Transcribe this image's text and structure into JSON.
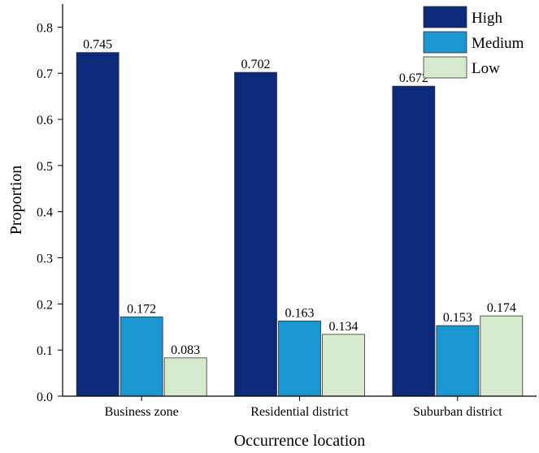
{
  "chart_data": {
    "type": "bar",
    "title": "",
    "xlabel": "Occurrence location",
    "ylabel": "Proportion",
    "ylim": [
      0,
      0.85
    ],
    "yticks": [
      "0.0",
      "0.1",
      "0.2",
      "0.3",
      "0.4",
      "0.5",
      "0.6",
      "0.7",
      "0.8"
    ],
    "grid": false,
    "legend_position": "top-right",
    "categories": [
      "Business zone",
      "Residential district",
      "Suburban district"
    ],
    "series": [
      {
        "name": "High",
        "color": "#0d2a7a",
        "values": [
          0.745,
          0.702,
          0.672
        ],
        "labels": [
          "0.745",
          "0.702",
          "0.672"
        ]
      },
      {
        "name": "Medium",
        "color": "#1a96d0",
        "values": [
          0.172,
          0.163,
          0.153
        ],
        "labels": [
          "0.172",
          "0.163",
          "0.153"
        ]
      },
      {
        "name": "Low",
        "color": "#d6ebcc",
        "values": [
          0.083,
          0.134,
          0.174
        ],
        "labels": [
          "0.083",
          "0.134",
          "0.174"
        ]
      }
    ]
  }
}
